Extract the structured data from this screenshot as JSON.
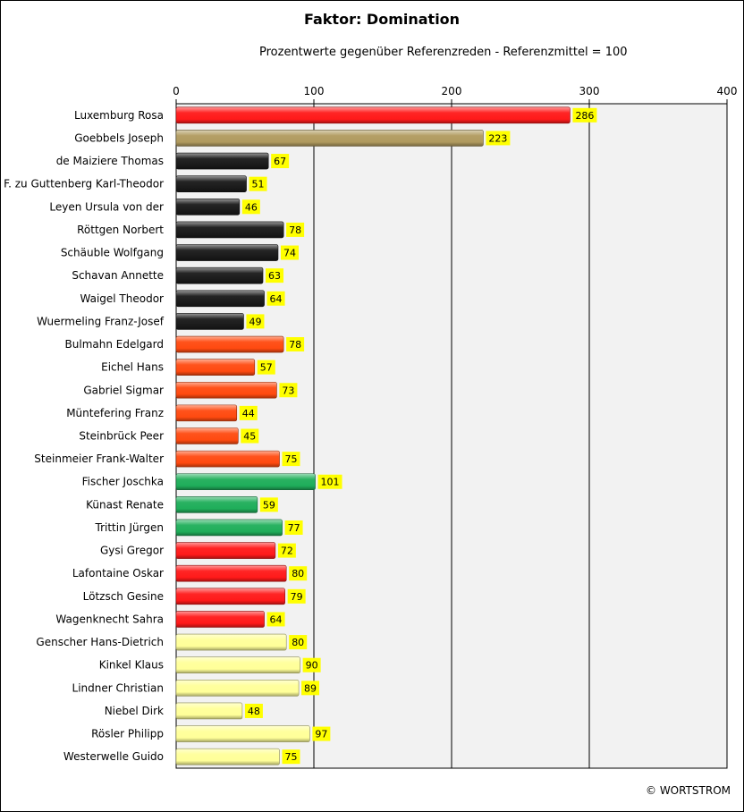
{
  "chart_data": {
    "type": "bar",
    "orientation": "horizontal",
    "title": "Faktor: Domination",
    "subtitle": "Prozentwerte  gegenüber Referenzreden - Referenzmittel = 100",
    "xlim": [
      0,
      400
    ],
    "xticks": [
      0,
      100,
      200,
      300,
      400
    ],
    "grid": true,
    "legend": "none",
    "categories": [
      "Luxemburg Rosa",
      "Goebbels Joseph",
      "de Maiziere Thomas",
      "F. zu Guttenberg Karl-Theodor",
      "Leyen Ursula von der",
      "Röttgen Norbert",
      "Schäuble Wolfgang",
      "Schavan Annette",
      "Waigel Theodor",
      "Wuermeling Franz-Josef",
      "Bulmahn Edelgard",
      "Eichel Hans",
      "Gabriel Sigmar",
      "Müntefering Franz",
      "Steinbrück Peer",
      "Steinmeier Frank-Walter",
      "Fischer Joschka",
      "Künast Renate",
      "Trittin Jürgen",
      "Gysi Gregor",
      "Lafontaine Oskar",
      "Lötzsch Gesine",
      "Wagenknecht Sahra",
      "Genscher Hans-Dietrich",
      "Kinkel Klaus",
      "Lindner Christian",
      "Niebel Dirk",
      "Rösler Philipp",
      "Westerwelle Guido"
    ],
    "values": [
      286,
      223,
      67,
      51,
      46,
      78,
      74,
      63,
      64,
      49,
      78,
      57,
      73,
      44,
      45,
      75,
      101,
      59,
      77,
      72,
      80,
      79,
      64,
      80,
      90,
      89,
      48,
      97,
      75
    ],
    "bar_colors": [
      "#ff1a1a",
      "#b09a5e",
      "#1a1a1a",
      "#1a1a1a",
      "#1a1a1a",
      "#1a1a1a",
      "#1a1a1a",
      "#1a1a1a",
      "#1a1a1a",
      "#1a1a1a",
      "#ff4a10",
      "#ff4a10",
      "#ff4a10",
      "#ff4a10",
      "#ff4a10",
      "#ff4a10",
      "#1fae5a",
      "#1fae5a",
      "#1fae5a",
      "#ff1a1a",
      "#ff1a1a",
      "#ff1a1a",
      "#ff1a1a",
      "#ffff99",
      "#ffff99",
      "#ffff99",
      "#ffff99",
      "#ffff99",
      "#ffff99"
    ],
    "label_bg_color": "#ffff00",
    "plot_bg_color": "#f2f2f2"
  },
  "footer": {
    "credit": "© WORTSTROM"
  }
}
